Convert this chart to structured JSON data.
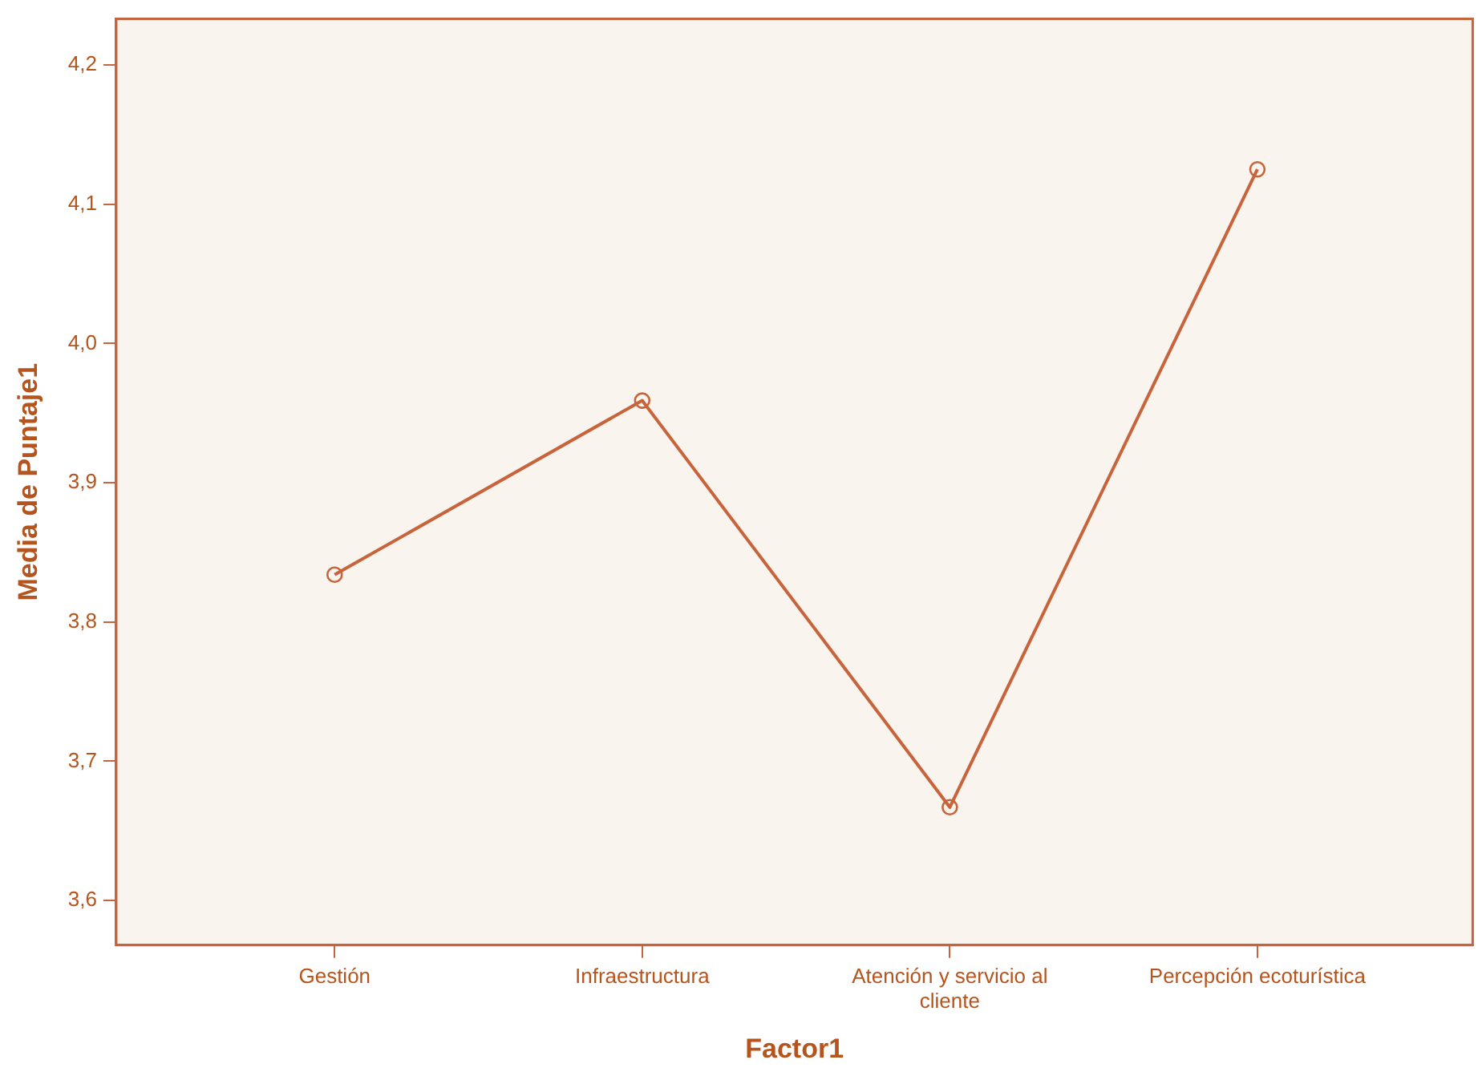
{
  "chart_data": {
    "type": "line",
    "xlabel": "Factor1",
    "ylabel": "Media de Puntaje1",
    "categories": [
      "Gestión",
      "Infraestructura",
      "Atención y servicio al cliente",
      "Percepción ecoturística"
    ],
    "series": [
      {
        "color": "#c8643c",
        "values": [
          3.834,
          3.959,
          3.667,
          4.125
        ]
      }
    ],
    "ylim": [
      3.568,
      4.233
    ],
    "yticks": [
      {
        "value": 3.6,
        "label": "3,6"
      },
      {
        "value": 3.7,
        "label": "3,7"
      },
      {
        "value": 3.8,
        "label": "3,8"
      },
      {
        "value": 3.9,
        "label": "3,9"
      },
      {
        "value": 4.0,
        "label": "4,0"
      },
      {
        "value": 4.1,
        "label": "4,1"
      },
      {
        "value": 4.2,
        "label": "4,2"
      }
    ],
    "grid": false,
    "legend": false,
    "marker": "circle",
    "line_style": "solid"
  }
}
